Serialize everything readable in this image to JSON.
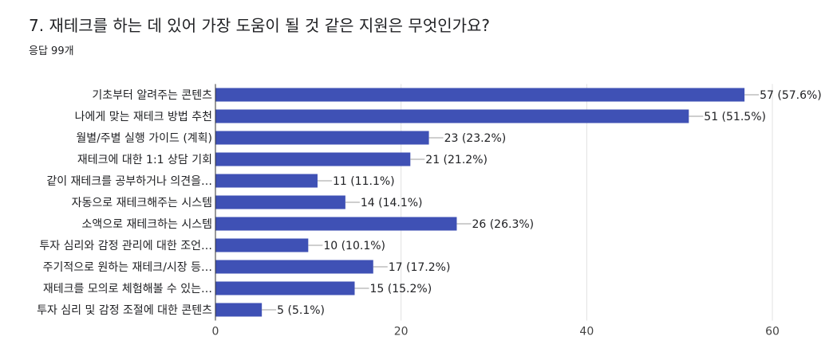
{
  "header": {
    "title": "7. 재테크를 하는 데 있어 가장 도움이 될 것 같은 지원은 무엇인가요?",
    "responses": "응답 99개"
  },
  "colors": {
    "bar": "#3f51b5",
    "grid": "#e0e0e0",
    "axis": "#333333",
    "leader": "#9e9e9e"
  },
  "chart_data": {
    "type": "bar",
    "orientation": "horizontal",
    "title": "7. 재테크를 하는 데 있어 가장 도움이 될 것 같은 지원은 무엇인가요?",
    "xlabel": "",
    "ylabel": "",
    "xlim": [
      0,
      60
    ],
    "xticks": [
      0,
      20,
      40,
      60
    ],
    "grid": true,
    "categories": [
      "기초부터 알려주는 콘텐츠",
      "나에게 맞는 재테크 방법 추천",
      "월별/주별 실행 가이드 (계획)",
      "재테크에 대한 1:1 상담 기회",
      "같이 재테크를 공부하거나 의견을…",
      "자동으로 재테크해주는 시스템",
      "소액으로 재테크하는 시스템",
      "투자 심리와 감정 관리에 대한 조언…",
      "주기적으로 원하는 재테크/시장 등…",
      "재테크를 모의로 체험해볼 수 있는…",
      "투자 심리 및 감정 조절에 대한 콘텐츠"
    ],
    "values": [
      57,
      51,
      23,
      21,
      11,
      14,
      26,
      10,
      17,
      15,
      5
    ],
    "labels": [
      "57 (57.6%)",
      "51 (51.5%)",
      "23 (23.2%)",
      "21 (21.2%)",
      "11 (11.1%)",
      "14 (14.1%)",
      "26 (26.3%)",
      "10 (10.1%)",
      "17 (17.2%)",
      "15 (15.2%)",
      "5 (5.1%)"
    ]
  }
}
